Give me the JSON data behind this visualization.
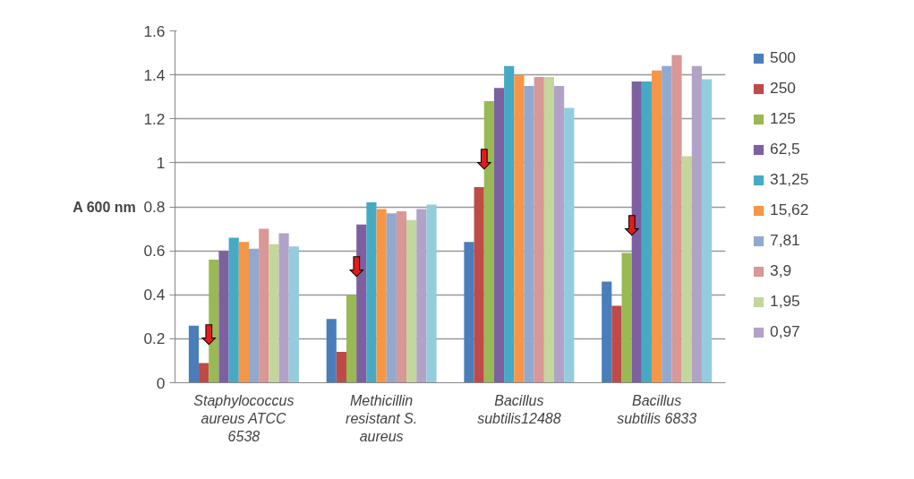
{
  "chart_data": {
    "type": "bar",
    "ylabel": "A 600 nm",
    "categories": [
      "Staphylococcus aureus ATCC 6538",
      "Methicillin resistant S. aureus",
      "Bacillus subtilis12488",
      "Bacillus subtilis 6833"
    ],
    "series": [
      {
        "name": "500",
        "color": "#4a7ebb",
        "values": [
          0.26,
          0.29,
          0.64,
          0.46
        ]
      },
      {
        "name": "250",
        "color": "#be4b48",
        "values": [
          0.09,
          0.14,
          0.89,
          0.35
        ]
      },
      {
        "name": "125",
        "color": "#98b954",
        "values": [
          0.56,
          0.4,
          1.28,
          0.59
        ]
      },
      {
        "name": "62,5",
        "color": "#7d60a0",
        "values": [
          0.6,
          0.72,
          1.34,
          1.37
        ]
      },
      {
        "name": "31,25",
        "color": "#46aac5",
        "values": [
          0.66,
          0.82,
          1.44,
          1.37
        ]
      },
      {
        "name": "15,62",
        "color": "#f79646",
        "values": [
          0.64,
          0.79,
          1.4,
          1.42
        ]
      },
      {
        "name": "7,81",
        "color": "#92a9cf",
        "values": [
          0.61,
          0.77,
          1.35,
          1.44
        ]
      },
      {
        "name": "3,9",
        "color": "#d99795",
        "values": [
          0.7,
          0.78,
          1.39,
          1.49
        ]
      },
      {
        "name": "1,95",
        "color": "#c3d69b",
        "values": [
          0.63,
          0.74,
          1.39,
          1.03
        ]
      },
      {
        "name": "0,97",
        "color": "#b3a2c7",
        "values": [
          0.68,
          0.79,
          1.35,
          1.44
        ]
      },
      {
        "color": "#93cddd",
        "values": [
          0.62,
          0.81,
          1.25,
          1.38
        ]
      }
    ],
    "annotations": [
      "⬇",
      "⬇",
      "⬇",
      "⬇"
    ],
    "ylim": [
      0,
      1.6
    ],
    "yticks": [
      0,
      {
        "value": 0.2,
        "label": "0.2"
      },
      {
        "value": 0.4,
        "label": "0.4"
      },
      {
        "value": 0.6,
        "label": "0.6"
      },
      {
        "value": 0.8,
        "label": "0.8"
      },
      1,
      {
        "value": 1.2,
        "label": "1.2"
      },
      {
        "value": 1.4,
        "label": "1.4"
      },
      {
        "value": 1.6,
        "label": "1.6"
      }
    ],
    "grid": "y",
    "legend": "right"
  }
}
